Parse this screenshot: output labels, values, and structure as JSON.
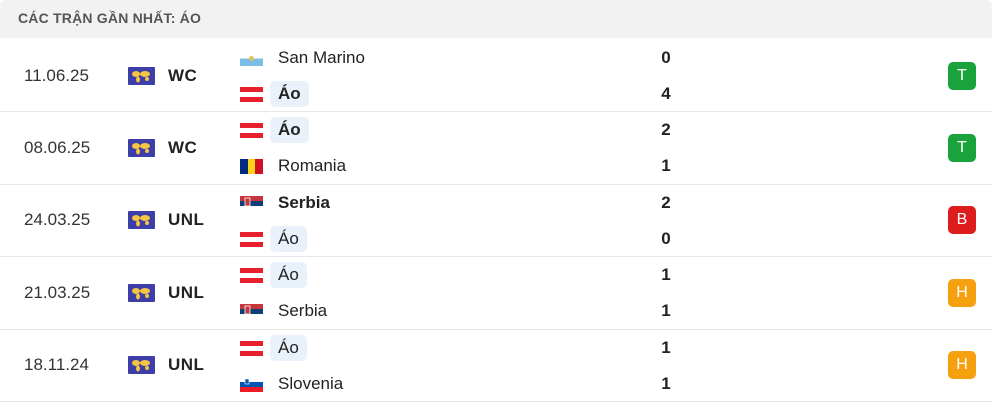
{
  "header": {
    "title": "CÁC TRẬN GẦN NHẤT: ÁO"
  },
  "matches": [
    {
      "date": "11.06.25",
      "competition": "WC",
      "teams": [
        {
          "name": "San Marino",
          "score": 0
        },
        {
          "name": "Áo",
          "score": 4,
          "highlight": true
        }
      ],
      "result": "T",
      "result_color": "#1aa33d"
    },
    {
      "date": "08.06.25",
      "competition": "WC",
      "teams": [
        {
          "name": "Áo",
          "score": 2,
          "highlight": true
        },
        {
          "name": "Romania",
          "score": 1
        }
      ],
      "result": "T",
      "result_color": "#1aa33d"
    },
    {
      "date": "24.03.25",
      "competition": "UNL",
      "teams": [
        {
          "name": "Serbia",
          "score": 2
        },
        {
          "name": "Áo",
          "score": 0,
          "highlight": true
        }
      ],
      "result": "B",
      "result_color": "#dd1d1d"
    },
    {
      "date": "21.03.25",
      "competition": "UNL",
      "teams": [
        {
          "name": "Áo",
          "score": 1,
          "highlight": true
        },
        {
          "name": "Serbia",
          "score": 1
        }
      ],
      "result": "H",
      "result_color": "#f5a00f"
    },
    {
      "date": "18.11.24",
      "competition": "UNL",
      "teams": [
        {
          "name": "Áo",
          "score": 1,
          "highlight": true
        },
        {
          "name": "Slovenia",
          "score": 1
        }
      ],
      "result": "H",
      "result_color": "#f5a00f"
    }
  ]
}
